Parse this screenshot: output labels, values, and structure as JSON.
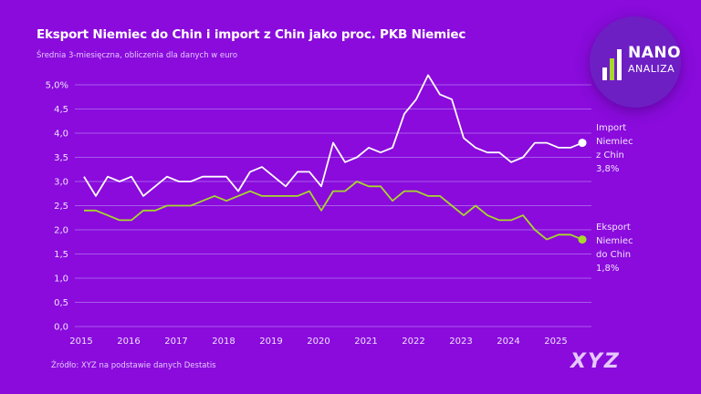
{
  "title": "Eksport Niemiec do Chin i import z Chin jako proc. PKB Niemiec",
  "subtitle": "Średnia 3-miesięczna, obliczenia dla danych w euro",
  "source": "Źródło: XYZ na podstawie danych Destatis",
  "logo": {
    "line1": "NANO",
    "line2": "ANALIZA"
  },
  "watermark": "XYZ",
  "colors": {
    "background": "#8a0bdc",
    "import": "#ffffff",
    "export": "#a6d92b",
    "grid": "#b46cf0"
  },
  "chart_data": {
    "type": "line",
    "title": "Eksport Niemiec do Chin i import z Chin jako proc. PKB Niemiec",
    "xlabel": "",
    "ylabel": "",
    "ylim": [
      0,
      5.0
    ],
    "grid": true,
    "yticks": [
      "0,0",
      "0,5",
      "1,0",
      "1,5",
      "2,0",
      "2,5",
      "3,0",
      "3,5",
      "4,0",
      "4,5",
      "5,0%"
    ],
    "xticks": [
      "2015",
      "2016",
      "2017",
      "2018",
      "2019",
      "2020",
      "2021",
      "2022",
      "2023",
      "2024",
      "2025"
    ],
    "x": [
      "2015-Q1",
      "2015-Q2",
      "2015-Q3",
      "2015-Q4",
      "2016-Q1",
      "2016-Q2",
      "2016-Q3",
      "2016-Q4",
      "2017-Q1",
      "2017-Q2",
      "2017-Q3",
      "2017-Q4",
      "2018-Q1",
      "2018-Q2",
      "2018-Q3",
      "2018-Q4",
      "2019-Q1",
      "2019-Q2",
      "2019-Q3",
      "2019-Q4",
      "2020-Q1",
      "2020-Q2",
      "2020-Q3",
      "2020-Q4",
      "2021-Q1",
      "2021-Q2",
      "2021-Q3",
      "2021-Q4",
      "2022-Q1",
      "2022-Q2",
      "2022-Q3",
      "2022-Q4",
      "2023-Q1",
      "2023-Q2",
      "2023-Q3",
      "2023-Q4",
      "2024-Q1",
      "2024-Q2",
      "2024-Q3",
      "2024-Q4",
      "2025-Q1",
      "2025-Q2",
      "2025-Q3"
    ],
    "series": [
      {
        "name": "Import Niemiec z Chin",
        "label_lines": [
          "Import",
          "Niemiec",
          "z Chin",
          "3,8%"
        ],
        "color": "#ffffff",
        "values": [
          3.1,
          2.7,
          3.1,
          3.0,
          3.1,
          2.7,
          2.9,
          3.1,
          3.0,
          3.0,
          3.1,
          3.1,
          3.1,
          2.8,
          3.2,
          3.3,
          3.1,
          2.9,
          3.2,
          3.2,
          2.9,
          3.8,
          3.4,
          3.5,
          3.7,
          3.6,
          3.7,
          4.4,
          4.7,
          5.2,
          4.8,
          4.7,
          3.9,
          3.7,
          3.6,
          3.6,
          3.4,
          3.5,
          3.8,
          3.8,
          3.7,
          3.7,
          3.8
        ]
      },
      {
        "name": "Eksport Niemiec do Chin",
        "label_lines": [
          "Eksport",
          "Niemiec",
          "do Chin",
          "1,8%"
        ],
        "color": "#a6d92b",
        "values": [
          2.4,
          2.4,
          2.3,
          2.2,
          2.2,
          2.4,
          2.4,
          2.5,
          2.5,
          2.5,
          2.6,
          2.7,
          2.6,
          2.7,
          2.8,
          2.7,
          2.7,
          2.7,
          2.7,
          2.8,
          2.4,
          2.8,
          2.8,
          3.0,
          2.9,
          2.9,
          2.6,
          2.8,
          2.8,
          2.7,
          2.7,
          2.5,
          2.3,
          2.5,
          2.3,
          2.2,
          2.2,
          2.3,
          2.0,
          1.8,
          1.9,
          1.9,
          1.8
        ]
      }
    ]
  }
}
